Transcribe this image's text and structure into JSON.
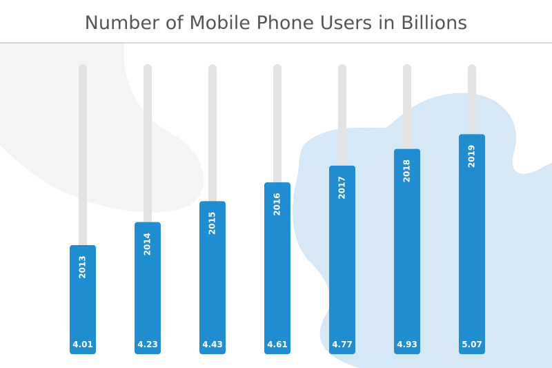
{
  "chart_data": {
    "type": "bar",
    "title": "Number of Mobile Phone Users in Billions",
    "categories": [
      "2013",
      "2014",
      "2015",
      "2016",
      "2017",
      "2018",
      "2019"
    ],
    "values": [
      4.01,
      4.23,
      4.43,
      4.61,
      4.77,
      4.93,
      5.07
    ],
    "value_labels": [
      "4.01",
      "4.23",
      "4.43",
      "4.61",
      "4.77",
      "4.93",
      "5.07"
    ],
    "xlabel": "",
    "ylabel": "",
    "grid": false,
    "legend": "none"
  },
  "colors": {
    "bar": "#1f8dd0",
    "track": "#e3e3e3",
    "blob_gray": "#f4f4f4",
    "blob_blue": "#d6e8f5",
    "title": "#555555",
    "divider": "#bdbdbd"
  }
}
